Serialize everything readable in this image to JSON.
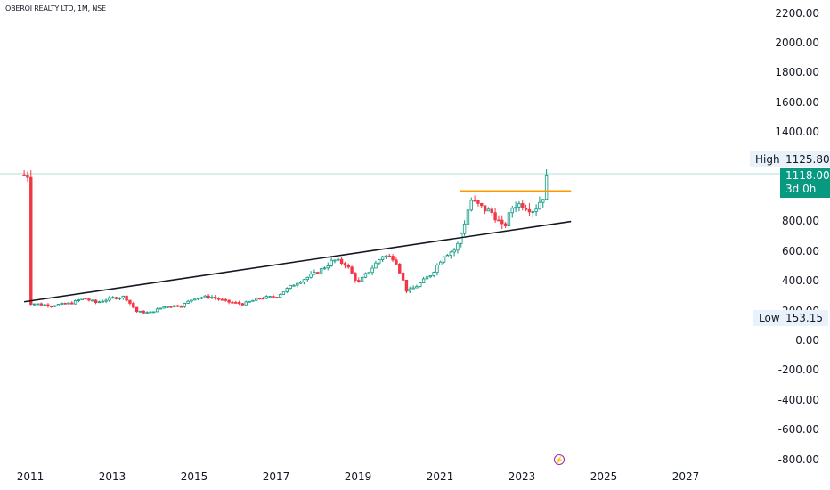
{
  "title": "OBEROI REALTY LTD, 1M, NSE",
  "y_axis_labels": [
    "2200.00",
    "2000.00",
    "1800.00",
    "1600.00",
    "1400.00",
    "800.00",
    "600.00",
    "400.00",
    "200.00",
    "0.00",
    "-200.00",
    "-400.00",
    "-600.00",
    "-800.00"
  ],
  "x_axis_labels": [
    "2011",
    "2013",
    "2015",
    "2017",
    "2019",
    "2021",
    "2023",
    "2025",
    "2027"
  ],
  "high": {
    "label": "High",
    "value": "1125.80"
  },
  "low": {
    "label": "Low",
    "value": "153.15"
  },
  "last": {
    "price": "1118.00",
    "countdown": "3d 0h"
  },
  "event_icon": "lightning-icon",
  "colors": {
    "up": "#089981",
    "down": "#f23645",
    "trendline": "#131722",
    "resistance": "#ff9800",
    "high_line": "#b2dfdb"
  },
  "chart_data": {
    "type": "candlestick",
    "title": "OBEROI REALTY LTD, 1M, NSE",
    "ylim": [
      -800,
      2200
    ],
    "xlim": [
      2010.85,
      2028.4
    ],
    "grid": false,
    "anchors": [
      [
        2011.0,
        255
      ],
      [
        2011.5,
        240
      ],
      [
        2012.0,
        255
      ],
      [
        2012.3,
        290
      ],
      [
        2012.6,
        260
      ],
      [
        2013.0,
        290
      ],
      [
        2013.3,
        300
      ],
      [
        2013.6,
        200
      ],
      [
        2013.9,
        190
      ],
      [
        2014.3,
        235
      ],
      [
        2014.7,
        240
      ],
      [
        2015.0,
        290
      ],
      [
        2015.4,
        300
      ],
      [
        2015.8,
        265
      ],
      [
        2016.2,
        250
      ],
      [
        2016.6,
        290
      ],
      [
        2017.0,
        300
      ],
      [
        2017.5,
        395
      ],
      [
        2018.0,
        460
      ],
      [
        2018.4,
        545
      ],
      [
        2018.7,
        520
      ],
      [
        2019.0,
        390
      ],
      [
        2019.3,
        480
      ],
      [
        2019.6,
        575
      ],
      [
        2019.9,
        560
      ],
      [
        2020.2,
        330
      ],
      [
        2020.5,
        385
      ],
      [
        2020.8,
        455
      ],
      [
        2021.1,
        580
      ],
      [
        2021.4,
        620
      ],
      [
        2021.6,
        800
      ],
      [
        2021.75,
        950
      ],
      [
        2022.0,
        900
      ],
      [
        2022.3,
        860
      ],
      [
        2022.55,
        755
      ],
      [
        2022.8,
        920
      ],
      [
        2023.0,
        920
      ],
      [
        2023.3,
        880
      ],
      [
        2023.55,
        990
      ],
      [
        2023.62,
        1118
      ]
    ],
    "trendline": {
      "from": [
        2010.85,
        265
      ],
      "to": [
        2024.2,
        805
      ]
    },
    "resistance": {
      "from": [
        2021.5,
        1010
      ],
      "to": [
        2024.2,
        1010
      ]
    },
    "high": 1125.8,
    "low": 153.15,
    "last": 1118.0
  }
}
